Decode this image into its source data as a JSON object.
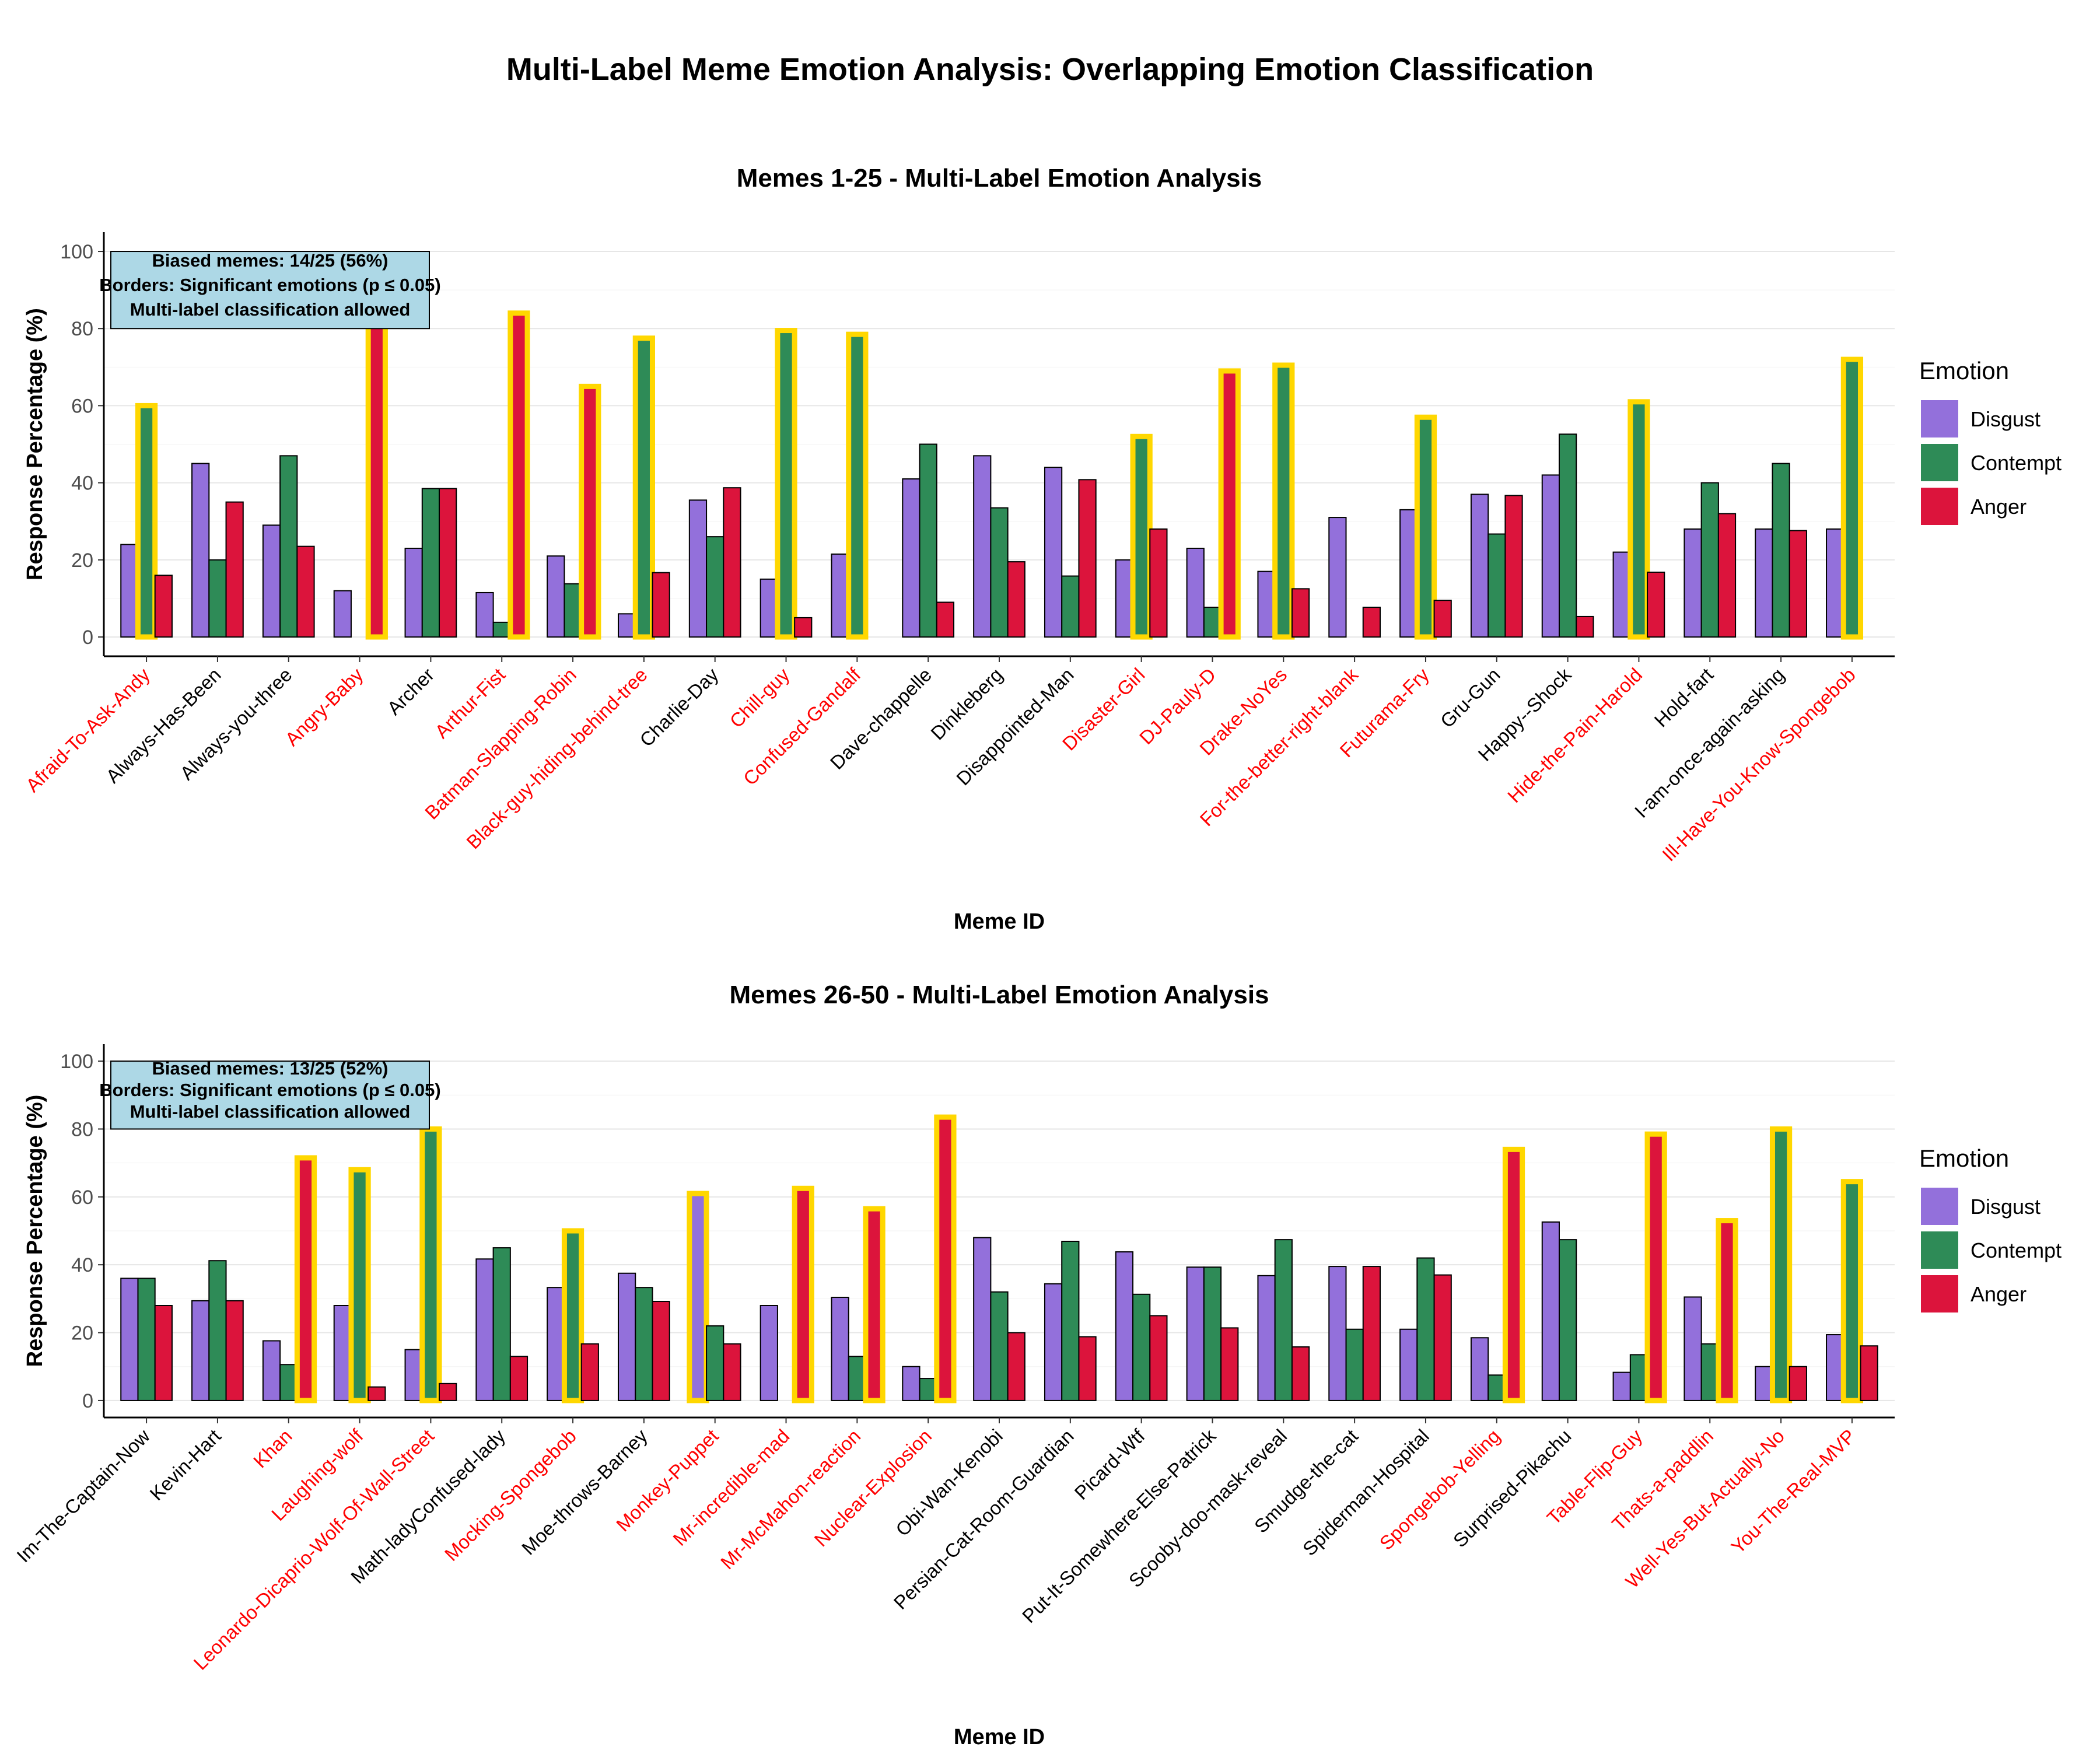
{
  "title": "Multi-Label Meme Emotion Analysis: Overlapping Emotion Classification",
  "legend": {
    "title": "Emotion",
    "items": [
      {
        "label": "Disgust",
        "color": "#9370DB"
      },
      {
        "label": "Contempt",
        "color": "#2E8B57"
      },
      {
        "label": "Anger",
        "color": "#DC143C"
      }
    ]
  },
  "colors": {
    "highlight_border": "#FFD700",
    "biased_label": "#FF0000",
    "note_box": "#ADD8E6"
  },
  "chart_data": [
    {
      "type": "bar",
      "title": "Memes 1-25 - Multi-Label Emotion Analysis",
      "xlabel": "Meme ID",
      "ylabel": "Response Percentage (%)",
      "ylim": [
        0,
        100
      ],
      "yticks": [
        "0",
        "20",
        "40",
        "60",
        "80",
        "100"
      ],
      "grid": true,
      "legend_position": "right",
      "note_lines": [
        "Biased memes: 14/25 (56%)",
        "Borders: Significant emotions (p ≤ 0.05)",
        "Multi-label classification allowed"
      ],
      "categories": [
        "Afraid-To-Ask-Andy",
        "Always-Has-Been",
        "Always-you-three",
        "Angry-Baby",
        "Archer",
        "Arthur-Fist",
        "Batman-Slapping-Robin",
        "Black-guy-hiding-behind-tree",
        "Charlie-Day",
        "Chill-guy",
        "Confused-Gandalf",
        "Dave-chappelle",
        "Dinkleberg",
        "Disappointed-Man",
        "Disaster-Girl",
        "DJ-Pauly-D",
        "Drake-NoYes",
        "For-the-better-right-blank",
        "Futurama-Fry",
        "Gru-Gun",
        "Happy--Shock",
        "Hide-the-Pain-Harold",
        "Hold-fart",
        "I-am-once-again-asking",
        "Ill-Have-You-Know-Spongebob"
      ],
      "biased": [
        true,
        false,
        false,
        true,
        false,
        true,
        true,
        true,
        false,
        true,
        true,
        false,
        false,
        false,
        true,
        true,
        true,
        true,
        true,
        false,
        false,
        true,
        false,
        false,
        true
      ],
      "series": [
        {
          "name": "Disgust",
          "values": [
            24,
            45,
            29,
            12,
            23,
            11.5,
            21,
            6,
            35.5,
            15,
            21.5,
            41,
            47,
            44,
            20,
            23,
            17,
            31,
            33,
            37,
            42,
            22,
            28,
            28,
            28
          ],
          "significant": [
            false,
            false,
            false,
            false,
            false,
            false,
            false,
            false,
            false,
            false,
            false,
            false,
            false,
            false,
            false,
            false,
            false,
            false,
            false,
            false,
            false,
            false,
            false,
            false,
            false
          ]
        },
        {
          "name": "Contempt",
          "values": [
            60,
            20,
            47,
            0,
            38.5,
            3.8,
            13.8,
            77.5,
            26,
            79.5,
            78.5,
            50,
            33.5,
            15.8,
            52,
            7.7,
            70.5,
            0,
            57,
            26.7,
            52.6,
            61,
            40,
            45,
            72
          ],
          "significant": [
            true,
            false,
            false,
            false,
            false,
            false,
            false,
            true,
            false,
            true,
            true,
            false,
            false,
            false,
            true,
            false,
            true,
            false,
            true,
            false,
            false,
            true,
            false,
            false,
            true
          ]
        },
        {
          "name": "Anger",
          "values": [
            16,
            35,
            23.5,
            88,
            38.5,
            84,
            65,
            16.7,
            38.7,
            5,
            0,
            9,
            19.5,
            40.8,
            28,
            69,
            12.5,
            7.7,
            9.5,
            36.7,
            5.3,
            16.8,
            32,
            27.6,
            0
          ],
          "significant": [
            false,
            false,
            false,
            true,
            false,
            true,
            true,
            false,
            false,
            false,
            false,
            false,
            false,
            false,
            false,
            true,
            false,
            false,
            false,
            false,
            false,
            false,
            false,
            false,
            false
          ]
        }
      ]
    },
    {
      "type": "bar",
      "title": "Memes 26-50 - Multi-Label Emotion Analysis",
      "xlabel": "Meme ID",
      "ylabel": "Response Percentage (%)",
      "ylim": [
        0,
        100
      ],
      "yticks": [
        "0",
        "20",
        "40",
        "60",
        "80",
        "100"
      ],
      "grid": true,
      "legend_position": "right",
      "note_lines": [
        "Biased memes: 13/25 (52%)",
        "Borders: Significant emotions (p ≤ 0.05)",
        "Multi-label classification allowed"
      ],
      "categories": [
        "Im-The-Captain-Now",
        "Kevin-Hart",
        "Khan",
        "Laughing-wolf",
        "Leonardo-Dicaprio-Wolf-Of-Wall-Street",
        "Math-ladyConfused-lady",
        "Mocking-Spongebob",
        "Moe-throws-Barney",
        "Monkey-Puppet",
        "Mr-incredible-mad",
        "Mr-McMahon-reaction",
        "Nuclear-Explosion",
        "Obi-Wan-Kenobi",
        "Persian-Cat-Room-Guardian",
        "Picard-Wtf",
        "Put-It-Somewhere-Else-Patrick",
        "Scooby-doo-mask-reveal",
        "Smudge-the-cat",
        "Spiderman-Hospital",
        "Spongebob-Yelling",
        "Surprised-Pikachu",
        "Table-Flip-Guy",
        "Thats-a-paddlin",
        "Well-Yes-But-Actually-No",
        "You-The-Real-MVP"
      ],
      "biased": [
        false,
        false,
        true,
        true,
        true,
        false,
        true,
        false,
        true,
        true,
        true,
        true,
        false,
        false,
        false,
        false,
        false,
        false,
        false,
        true,
        false,
        true,
        true,
        true,
        true
      ],
      "series": [
        {
          "name": "Disgust",
          "values": [
            36,
            29.4,
            17.6,
            28,
            15,
            41.7,
            33.3,
            37.5,
            61,
            28,
            30.4,
            10,
            48,
            34.4,
            43.8,
            39.3,
            36.8,
            39.5,
            21,
            18.5,
            52.6,
            8.3,
            30.5,
            10,
            19.4
          ],
          "significant": [
            false,
            false,
            false,
            false,
            false,
            false,
            false,
            false,
            true,
            false,
            false,
            false,
            false,
            false,
            false,
            false,
            false,
            false,
            false,
            false,
            false,
            false,
            false,
            false,
            false
          ]
        },
        {
          "name": "Contempt",
          "values": [
            36,
            41.2,
            10.6,
            68,
            80,
            45,
            50,
            33.3,
            22,
            0,
            13,
            6.5,
            32,
            46.9,
            31.3,
            39.3,
            47.4,
            21,
            42,
            7.5,
            47.4,
            13.5,
            16.7,
            80,
            64.5
          ],
          "significant": [
            false,
            false,
            false,
            true,
            true,
            false,
            true,
            false,
            false,
            false,
            false,
            false,
            false,
            false,
            false,
            false,
            false,
            false,
            false,
            false,
            false,
            false,
            false,
            true,
            true
          ]
        },
        {
          "name": "Anger",
          "values": [
            28,
            29.4,
            71.5,
            4,
            5,
            13,
            16.7,
            29.2,
            16.7,
            62.5,
            56.5,
            83.5,
            20,
            18.8,
            25,
            21.4,
            15.8,
            39.5,
            37,
            74,
            0,
            78.5,
            53,
            10,
            16.1
          ],
          "significant": [
            false,
            false,
            true,
            false,
            false,
            false,
            false,
            false,
            false,
            true,
            true,
            true,
            false,
            false,
            false,
            false,
            false,
            false,
            false,
            true,
            false,
            true,
            true,
            false,
            false
          ]
        }
      ]
    }
  ]
}
